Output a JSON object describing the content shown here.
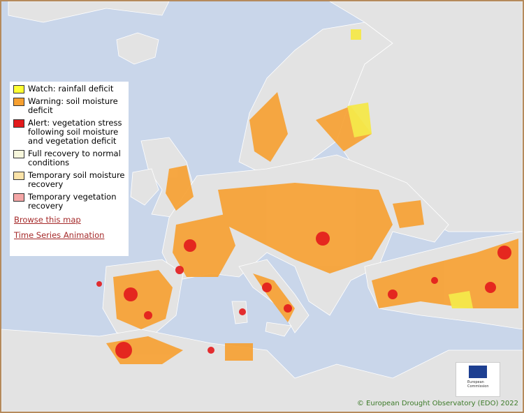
{
  "legend": {
    "items": [
      {
        "label": "Watch: rainfall deficit",
        "color": "#ffff33"
      },
      {
        "label": "Warning: soil moisture deficit",
        "color": "#f7a030"
      },
      {
        "label": "Alert: vegetation stress following soil moisture and vegetation deficit",
        "color": "#e31a1c"
      },
      {
        "label": "Full recovery to normal conditions",
        "color": "#f7f7dc"
      },
      {
        "label": "Temporary soil moisture recovery",
        "color": "#fbe3a8"
      },
      {
        "label": "Temporary vegetation recovery",
        "color": "#f4a6a6"
      }
    ]
  },
  "links": [
    "Browse this map",
    "Time Series Animation"
  ],
  "logo_text": "European Commission",
  "credit": "© European Drought Observatory (EDO) 2022"
}
